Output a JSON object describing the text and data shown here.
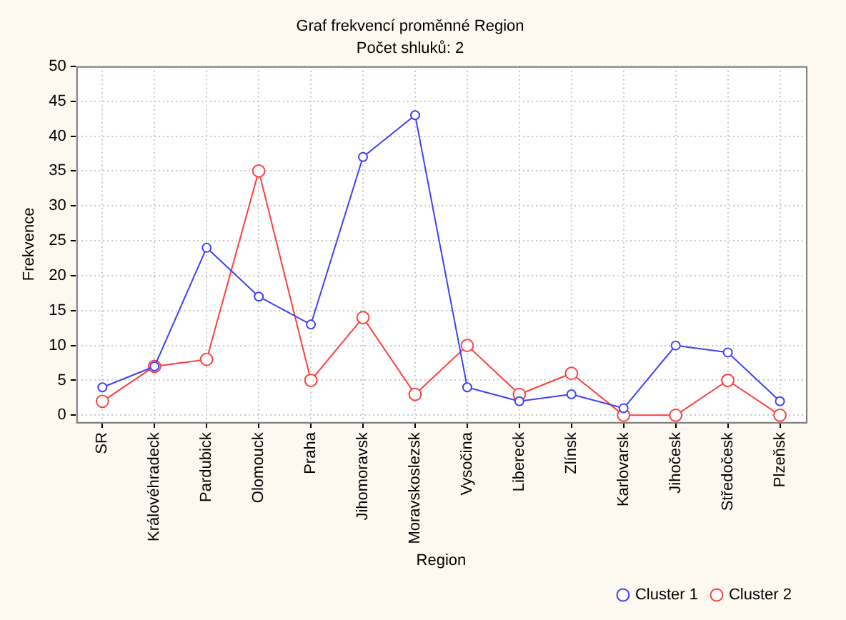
{
  "chart_data": {
    "type": "line",
    "title": "Graf frekvencí proměnné Region",
    "subtitle": "Počet shluků: 2",
    "xlabel": "Region",
    "ylabel": "Frekvence",
    "categories": [
      "SR",
      "Královéhradeck",
      "Pardubick",
      "Olomouck",
      "Praha",
      "Jihomoravsk",
      "Moravskoslezsk",
      "Vysočina",
      "Libereck",
      "Zlínsk",
      "Karlovarsk",
      "Jihočesk",
      "Středočesk",
      "Plzeňsk"
    ],
    "series": [
      {
        "name": "Cluster 1",
        "color": "#4040ff",
        "values": [
          4,
          7,
          24,
          17,
          13,
          37,
          43,
          4,
          2,
          3,
          1,
          10,
          9,
          2
        ]
      },
      {
        "name": "Cluster 2",
        "color": "#ff4040",
        "values": [
          2,
          7,
          8,
          35,
          5,
          14,
          3,
          10,
          3,
          6,
          0,
          0,
          5,
          0
        ]
      }
    ],
    "ylim": [
      -1,
      50
    ],
    "yticks": [
      0,
      5,
      10,
      15,
      20,
      25,
      30,
      35,
      40,
      45,
      50
    ],
    "grid": true,
    "legend": "bottom right",
    "marker": "circle",
    "line_style": "solid"
  }
}
